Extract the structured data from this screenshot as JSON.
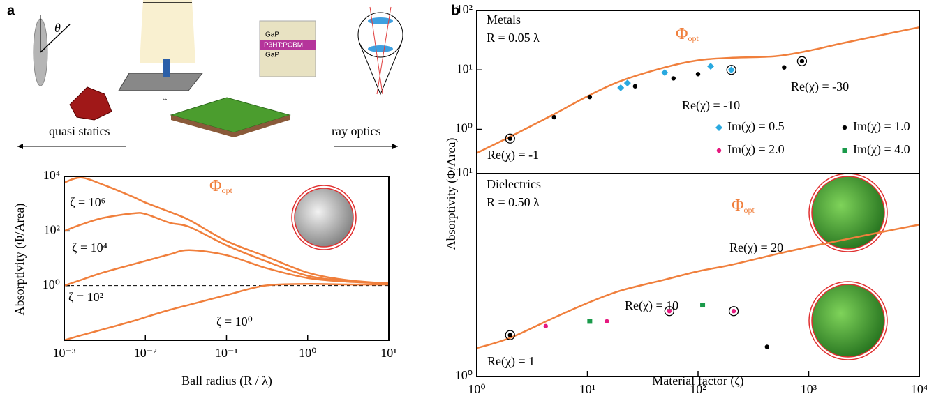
{
  "panel_labels": [
    "a",
    "b"
  ],
  "illustration": {
    "theta": "θ",
    "left": "quasi statics",
    "right": "ray optics",
    "layers": [
      "GaP",
      "P3HT:PCBM",
      "GaP"
    ]
  },
  "chart_data": [
    {
      "type": "line",
      "xscale": "log",
      "yscale": "log",
      "xlim": [
        0.001,
        10
      ],
      "ylim": [
        0.01,
        10000
      ],
      "xticks": [
        {
          "value": 0.001,
          "label": "10⁻³"
        },
        {
          "value": 0.01,
          "label": "10⁻²"
        },
        {
          "value": 0.1,
          "label": "10⁻¹"
        },
        {
          "value": 1,
          "label": "10⁰"
        },
        {
          "value": 10,
          "label": "10¹"
        }
      ],
      "yticks": [
        {
          "value": 1,
          "label": "10⁰"
        },
        {
          "value": 100,
          "label": "10²"
        },
        {
          "value": 10000,
          "label": "10⁴"
        }
      ],
      "xlabel": "Ball radius (R / λ)",
      "ylabel": "Absorptivity (Φ/Area)",
      "curve_label": [
        "Φ",
        "opt"
      ],
      "color": "#f07f3c",
      "reference_line": 1,
      "x": [
        0.001,
        0.0016,
        0.003,
        0.007,
        0.01,
        0.02,
        0.035,
        0.1,
        0.3,
        1,
        3,
        10
      ],
      "series": [
        {
          "name": "ζ = 10⁶",
          "values": [
            5900,
            9000,
            5000,
            1800,
            1100,
            500,
            250,
            43,
            12,
            3,
            1.6,
            1.2
          ]
        },
        {
          "name": "ζ = 10⁴",
          "values": [
            100,
            170,
            300,
            440,
            420,
            200,
            140,
            30,
            8,
            2.3,
            1.5,
            1.2
          ]
        },
        {
          "name": "ζ = 10²",
          "values": [
            1,
            1.6,
            3,
            6,
            8,
            14,
            20,
            13,
            4.5,
            1.9,
            1.4,
            1.2
          ]
        },
        {
          "name": "ζ = 10⁰",
          "values": [
            0.01,
            0.015,
            0.025,
            0.05,
            0.07,
            0.13,
            0.2,
            0.45,
            1.0,
            1.15,
            1.1,
            1.1
          ]
        }
      ]
    },
    {
      "type": "scatter",
      "xscale": "log",
      "yscale": "log",
      "xlim": [
        1,
        10000
      ],
      "ylim": [
        0.18,
        100
      ],
      "yticks": [
        {
          "value": 1,
          "label": "10⁰"
        },
        {
          "value": 10,
          "label": "10¹"
        },
        {
          "value": 100,
          "label": "10²"
        }
      ],
      "ylabel": "Absorptivity (Φ/Area)",
      "curve_label": [
        "Φ",
        "opt"
      ],
      "color": "#f07f3c",
      "annotations": [
        "Metals",
        "R = 0.05 λ",
        "Re(χ) = -1",
        "Re(χ) = -10",
        "Re(χ) = -30"
      ],
      "curve": {
        "x": [
          1,
          2,
          5,
          10,
          20,
          50,
          100,
          200,
          500,
          1000,
          2000,
          5000,
          10000
        ],
        "values": [
          0.4,
          0.75,
          1.8,
          3.6,
          6.5,
          11,
          14.5,
          16,
          17,
          21,
          28,
          40,
          52
        ]
      },
      "series": [
        {
          "name": "Im(χ) = 0.5",
          "color": "#29a9e0",
          "marker": "diamond",
          "x": [
            20,
            23,
            50,
            130,
            200
          ],
          "values": [
            5,
            6,
            9,
            11.5,
            10
          ],
          "ringed": [
            4
          ]
        },
        {
          "name": "Im(χ) = 1.0",
          "color": "#000000",
          "marker": "circle",
          "x": [
            2,
            5,
            10.5,
            27,
            60,
            100,
            600,
            870
          ],
          "values": [
            0.7,
            1.6,
            3.5,
            5.3,
            7.2,
            8.5,
            11,
            14
          ],
          "ringed": [
            0,
            7
          ]
        }
      ]
    },
    {
      "type": "scatter",
      "xscale": "log",
      "yscale": "log",
      "xlim": [
        1,
        10000
      ],
      "ylim": [
        1,
        10
      ],
      "xticks": [
        {
          "value": 1,
          "label": "10⁰"
        },
        {
          "value": 10,
          "label": "10¹"
        },
        {
          "value": 100,
          "label": "10²"
        },
        {
          "value": 1000,
          "label": "10³"
        },
        {
          "value": 10000,
          "label": "10⁴"
        }
      ],
      "yticks": [
        {
          "value": 1,
          "label": "10⁰"
        },
        {
          "value": 10,
          "label": "10¹"
        }
      ],
      "xlabel": "Material factor (ζ)",
      "curve_label": [
        "Φ",
        "opt"
      ],
      "color": "#f07f3c",
      "annotations": [
        "Dielectrics",
        "R = 0.50 λ",
        "Re(χ) = 1",
        "Re(χ) = 10",
        "Re(χ) = 20"
      ],
      "curve": {
        "x": [
          1,
          2,
          5,
          10,
          20,
          50,
          100,
          200,
          500,
          1000,
          2000,
          5000,
          10000
        ],
        "values": [
          1.38,
          1.55,
          1.95,
          2.3,
          2.65,
          3.0,
          3.3,
          3.55,
          4.0,
          4.35,
          4.7,
          5.2,
          5.6
        ]
      },
      "series": [
        {
          "name": "Im(χ) = 1.0",
          "color": "#000000",
          "marker": "circle",
          "x": [
            2,
            420
          ],
          "values": [
            1.6,
            1.4
          ],
          "ringed": [
            0
          ]
        },
        {
          "name": "Im(χ) = 2.0",
          "color": "#e6197f",
          "marker": "circle",
          "x": [
            4.2,
            15,
            55,
            210
          ],
          "values": [
            1.77,
            1.87,
            2.1,
            2.1
          ],
          "ringed": [
            2,
            3
          ]
        },
        {
          "name": "Im(χ) = 4.0",
          "color": "#1a9a4a",
          "marker": "square",
          "x": [
            10.5,
            110
          ],
          "values": [
            1.87,
            2.25
          ],
          "ringed": []
        }
      ]
    }
  ]
}
